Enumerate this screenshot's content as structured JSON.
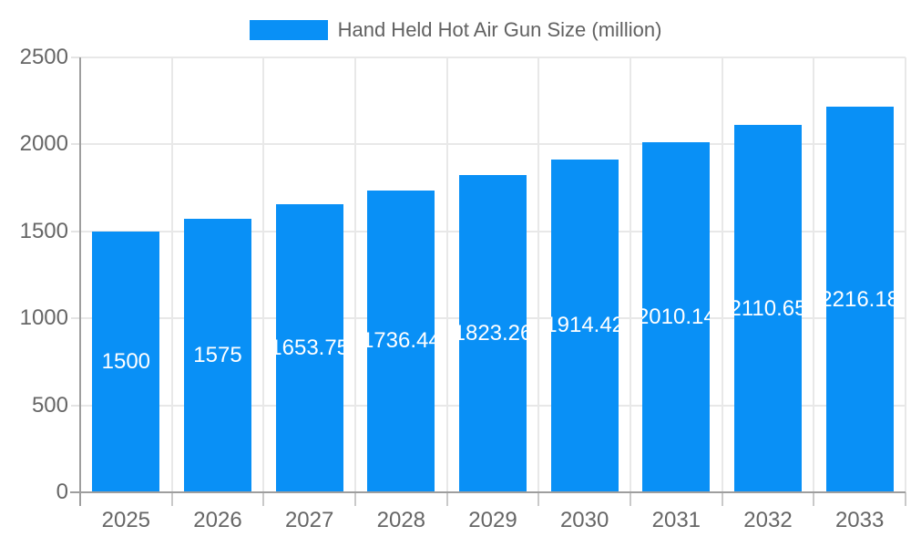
{
  "legend": {
    "label": "Hand Held Hot Air Gun Size (million)"
  },
  "chart_data": {
    "type": "bar",
    "title": "Hand Held Hot Air Gun Size (million)",
    "categories": [
      "2025",
      "2026",
      "2027",
      "2028",
      "2029",
      "2030",
      "2031",
      "2032",
      "2033"
    ],
    "values": [
      1500,
      1575,
      1653.75,
      1736.44,
      1823.26,
      1914.42,
      2010.14,
      2110.65,
      2216.18
    ],
    "bar_labels": [
      "1500",
      "1575",
      "1653.75",
      "1736.44",
      "1823.26",
      "1914.42",
      "2010.14",
      "2110.65",
      "2216.18"
    ],
    "xlabel": "",
    "ylabel": "",
    "ylim": [
      0,
      2500
    ],
    "yticks": [
      0,
      500,
      1000,
      1500,
      2000,
      2500
    ],
    "legend_position": "top",
    "grid": true,
    "colors": {
      "bar": "#0990f6",
      "axis": "#9e9e9e",
      "grid": "#e8e8e8",
      "axis_text": "#666666",
      "legend_text": "#616161",
      "bar_label_text": "#ffffff",
      "background": "#ffffff"
    }
  }
}
